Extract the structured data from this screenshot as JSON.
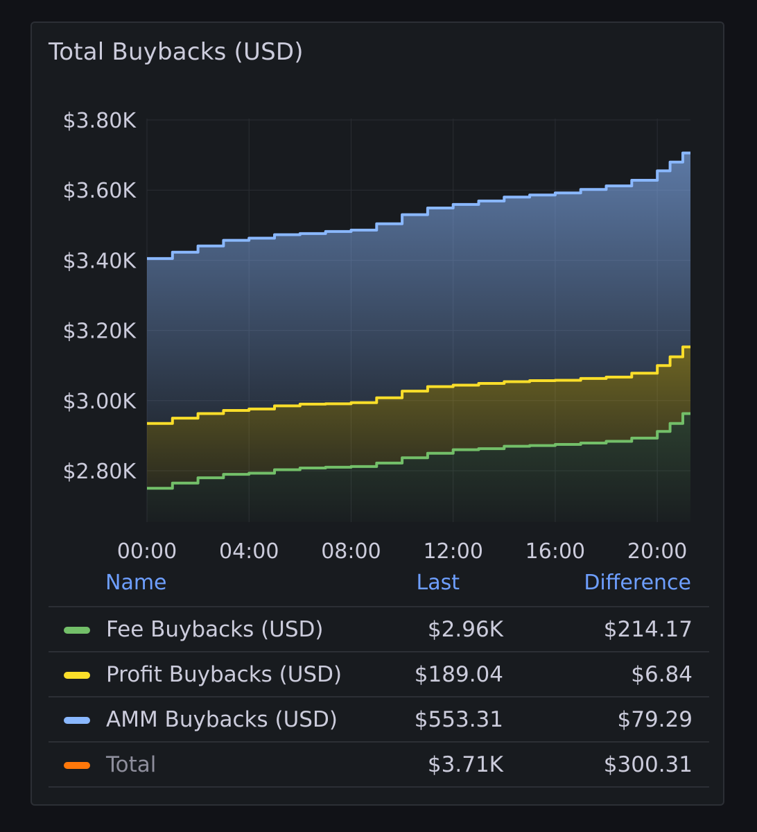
{
  "panel": {
    "title": "Total Buybacks (USD)"
  },
  "legend": {
    "headers": {
      "name": "Name",
      "last": "Last",
      "difference": "Difference"
    },
    "rows": [
      {
        "name": "Fee Buybacks (USD)",
        "last": "$2.96K",
        "difference": "$214.17",
        "color": "#73bf69"
      },
      {
        "name": "Profit Buybacks (USD)",
        "last": "$189.04",
        "difference": "$6.84",
        "color": "#fade2a"
      },
      {
        "name": "AMM Buybacks (USD)",
        "last": "$553.31",
        "difference": "$79.29",
        "color": "#8ab8ff"
      },
      {
        "name": "Total",
        "last": "$3.71K",
        "difference": "$300.31",
        "color": "#ff780a"
      }
    ]
  },
  "chart_data": {
    "type": "area",
    "stacked": true,
    "title": "Total Buybacks (USD)",
    "yticks": [
      "$2.80K",
      "$3.00K",
      "$3.20K",
      "$3.40K",
      "$3.60K",
      "$3.80K"
    ],
    "ytick_values": [
      2800,
      3000,
      3200,
      3400,
      3600,
      3800
    ],
    "xticks": [
      "00:00",
      "04:00",
      "08:00",
      "12:00",
      "16:00",
      "20:00"
    ],
    "xtick_hours": [
      0,
      4,
      8,
      12,
      16,
      20
    ],
    "xlim_hours": [
      0,
      21.3
    ],
    "ylim": [
      2650,
      3820
    ],
    "grid": true,
    "legend_placement": "bottom-table",
    "x_hours": [
      0,
      1,
      2,
      3,
      4,
      5,
      6,
      7,
      8,
      9,
      10,
      11,
      12,
      13,
      14,
      15,
      16,
      17,
      18,
      19,
      20,
      20.5,
      21,
      21.3
    ],
    "series": [
      {
        "name": "Fee Buybacks (USD)",
        "color": "#73bf69",
        "stack_top": [
          2750,
          2765,
          2780,
          2790,
          2793,
          2803,
          2808,
          2810,
          2812,
          2822,
          2837,
          2850,
          2860,
          2863,
          2870,
          2872,
          2875,
          2879,
          2884,
          2893,
          2912,
          2935,
          2963,
          2963
        ]
      },
      {
        "name": "Profit Buybacks (USD)",
        "color": "#fade2a",
        "stack_top": [
          2935,
          2950,
          2963,
          2972,
          2976,
          2985,
          2990,
          2991,
          2994,
          3008,
          3027,
          3040,
          3044,
          3049,
          3054,
          3057,
          3058,
          3063,
          3067,
          3078,
          3100,
          3125,
          3153,
          3153
        ]
      },
      {
        "name": "AMM Buybacks (USD)",
        "color": "#8ab8ff",
        "stack_top": [
          3405,
          3423,
          3441,
          3457,
          3463,
          3473,
          3476,
          3482,
          3486,
          3504,
          3530,
          3549,
          3559,
          3569,
          3580,
          3586,
          3592,
          3602,
          3612,
          3628,
          3655,
          3680,
          3706,
          3706
        ]
      }
    ]
  }
}
